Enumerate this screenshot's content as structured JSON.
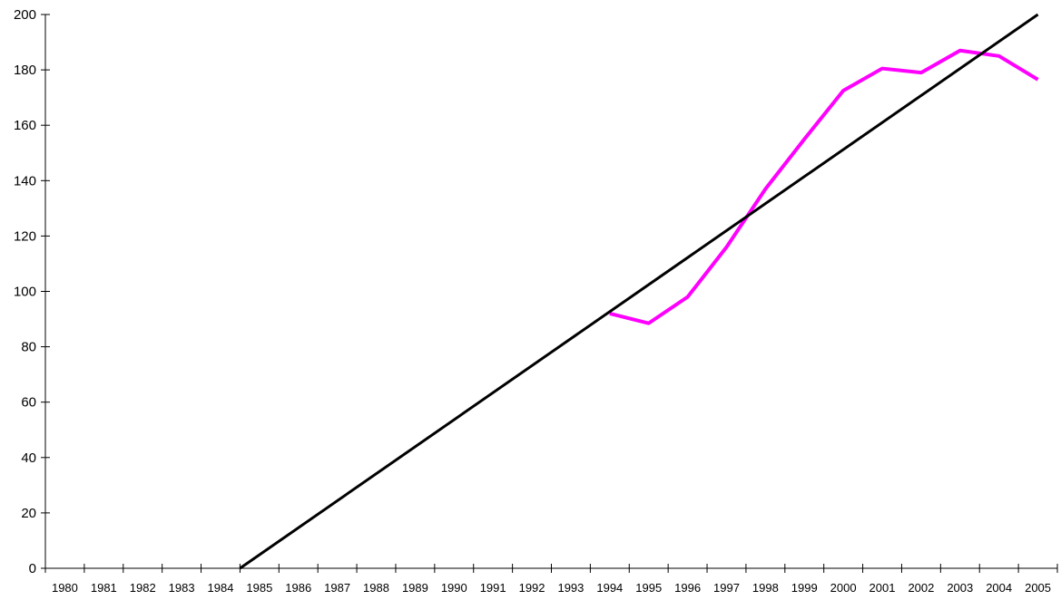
{
  "chart_data": {
    "type": "line",
    "title": "",
    "xlabel": "",
    "ylabel": "",
    "categories": [
      "1980",
      "1981",
      "1982",
      "1983",
      "1984",
      "1985",
      "1986",
      "1987",
      "1988",
      "1989",
      "1990",
      "1991",
      "1992",
      "1993",
      "1994",
      "1995",
      "1996",
      "1997",
      "1998",
      "1999",
      "2000",
      "2001",
      "2002",
      "2003",
      "2004",
      "2005"
    ],
    "y_ticks": [
      0,
      20,
      40,
      60,
      80,
      100,
      120,
      140,
      160,
      180,
      200
    ],
    "ylim": [
      0,
      200
    ],
    "grid": false,
    "legend": "none",
    "series": [
      {
        "color": "#ff00ff",
        "style": "polyline",
        "x": [
          "1994",
          "1995",
          "1996",
          "1997",
          "1998",
          "1999",
          "2000",
          "2001",
          "2002",
          "2003",
          "2004",
          "2005"
        ],
        "values": [
          92,
          88.5,
          98,
          116,
          137,
          155,
          172.5,
          180.5,
          179,
          187,
          185,
          176.5
        ]
      },
      {
        "color": "#000000",
        "style": "straight-line",
        "x": [
          "1985",
          "2005"
        ],
        "values": [
          0,
          200
        ]
      }
    ]
  }
}
